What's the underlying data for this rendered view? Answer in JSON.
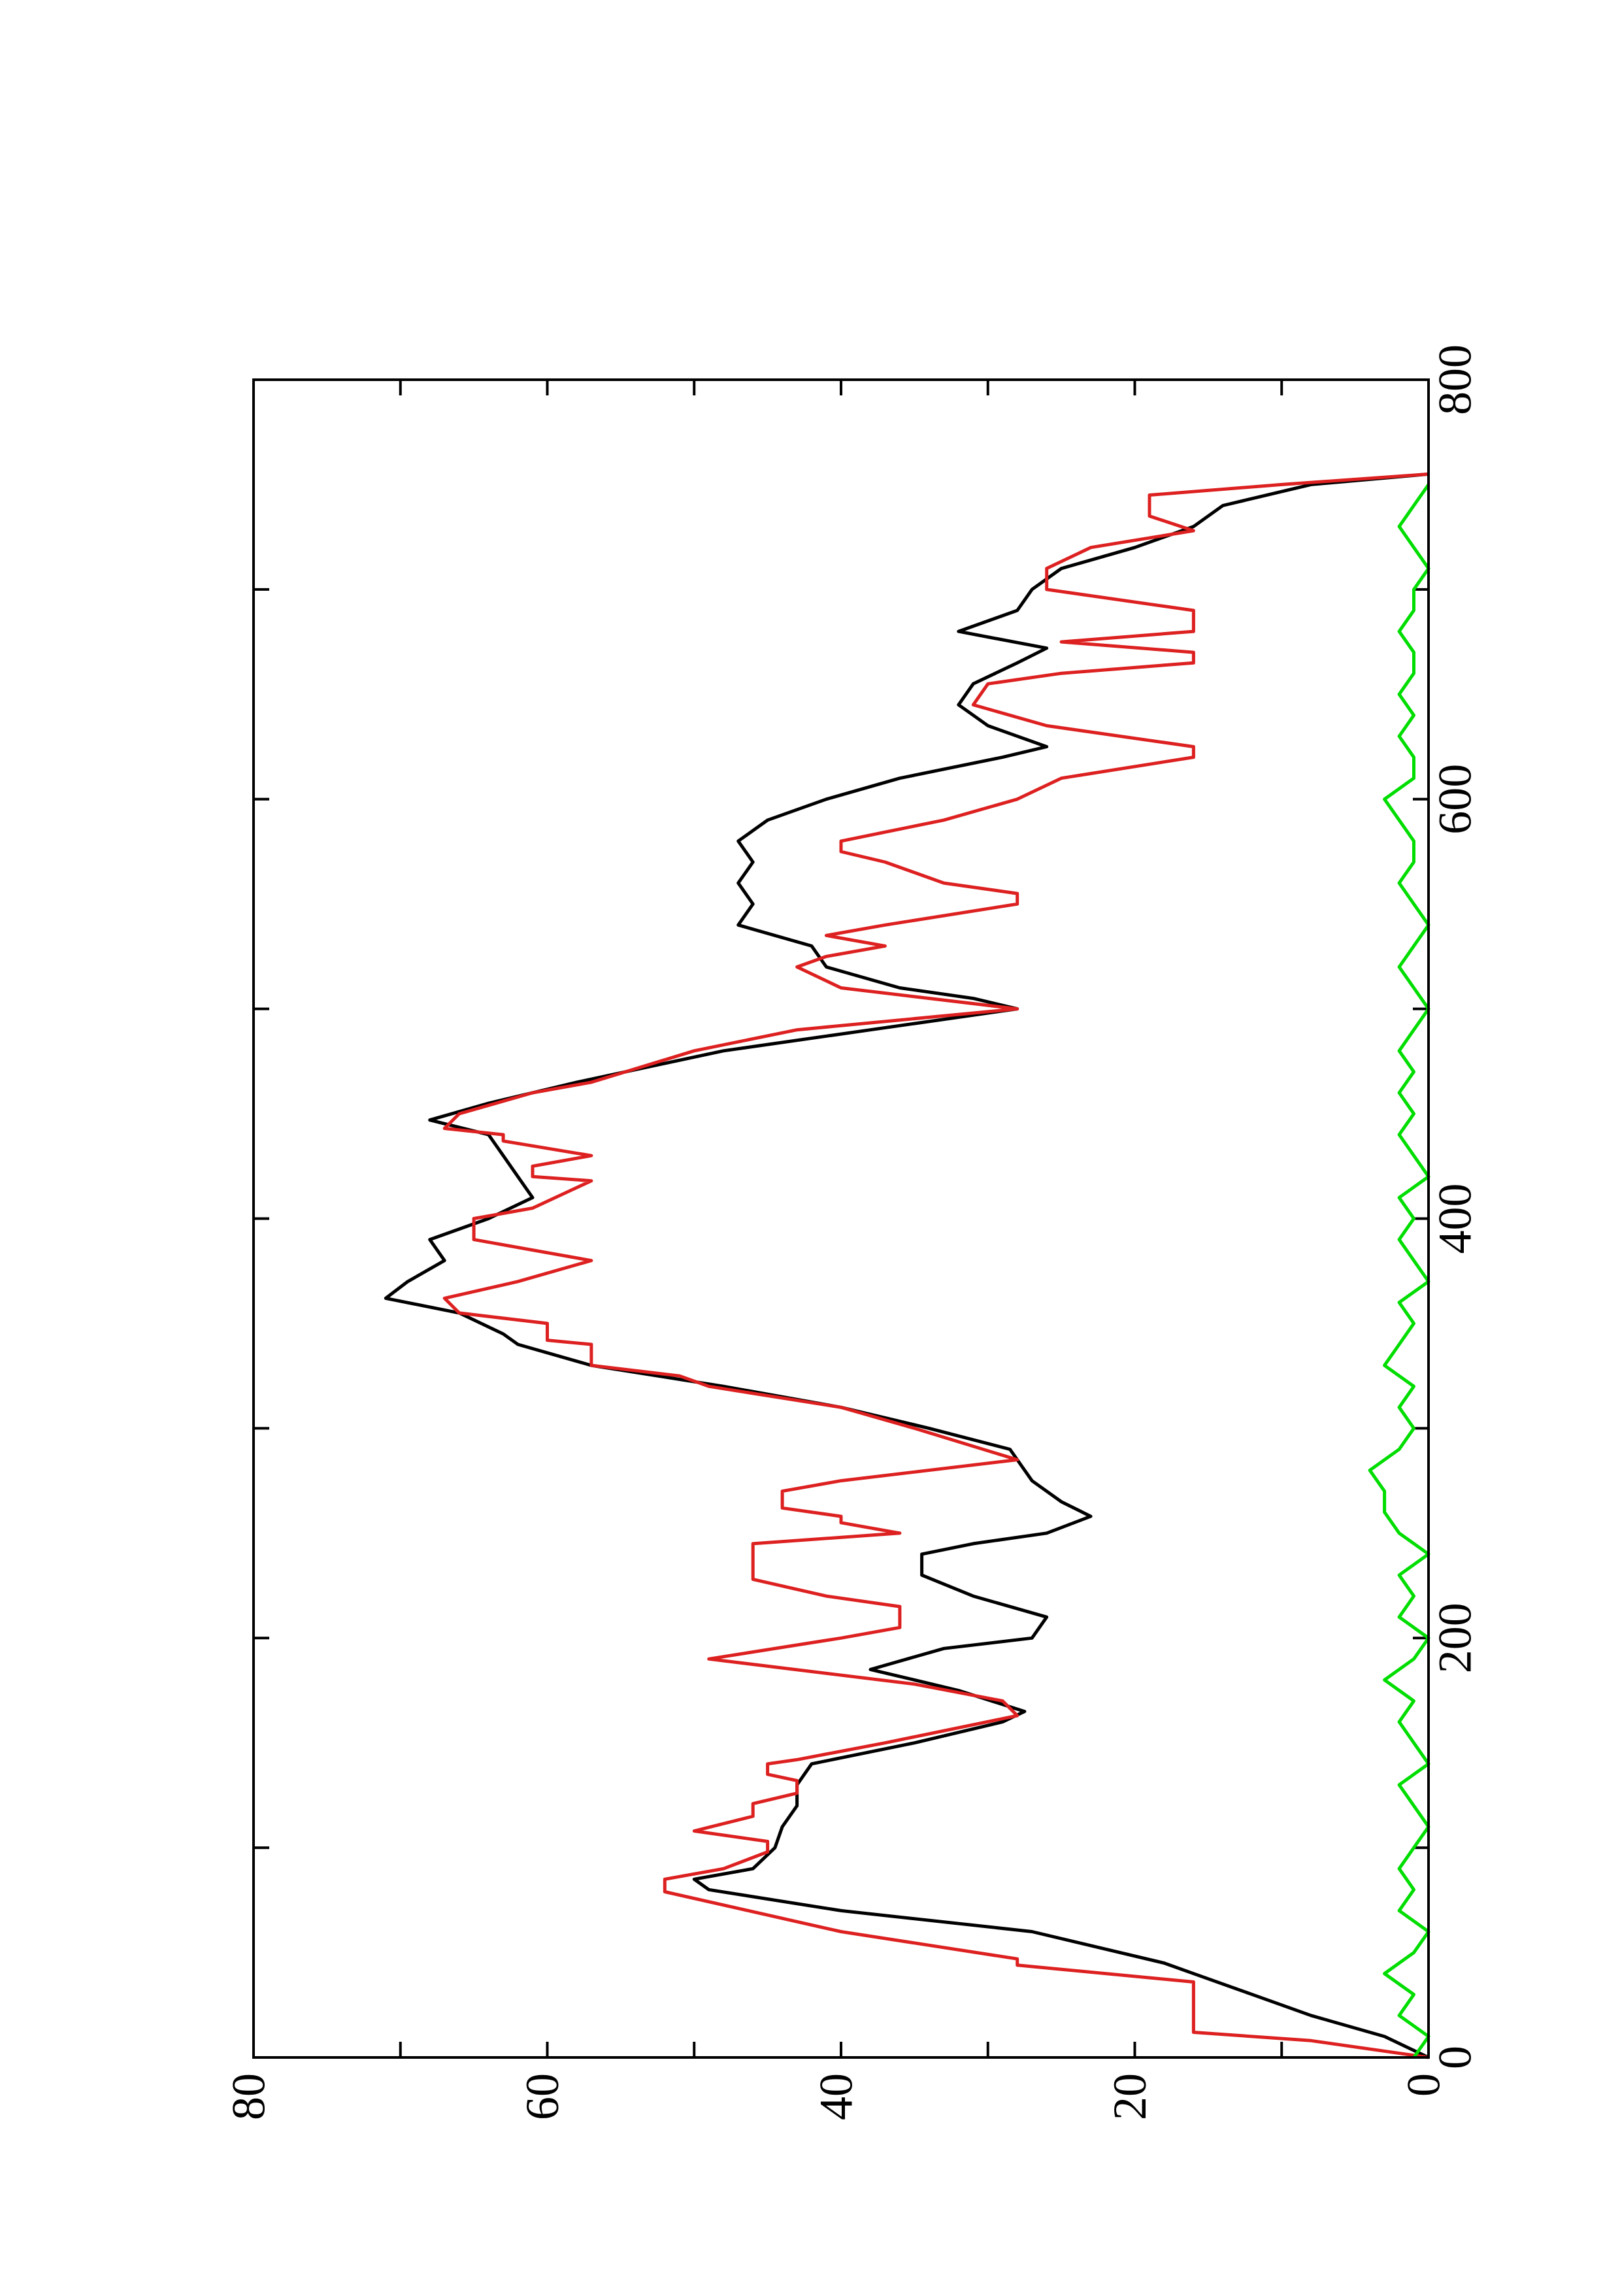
{
  "chart_data": {
    "type": "line",
    "xlim": [
      0,
      800
    ],
    "xticks": [
      0,
      200,
      400,
      600,
      800
    ],
    "xminor_ticks": [
      100,
      300,
      500,
      700
    ],
    "ylim": [
      0,
      80
    ],
    "yticks": [
      0,
      20,
      40,
      60,
      80
    ],
    "yminor_ticks": [
      10,
      30,
      50,
      70
    ],
    "rotated": true,
    "series": [
      {
        "color": "#000000",
        "x": [
          0,
          10,
          20,
          30,
          40,
          45,
          60,
          70,
          80,
          85,
          90,
          100,
          110,
          120,
          130,
          140,
          150,
          160,
          165,
          175,
          185,
          195,
          200,
          210,
          220,
          230,
          240,
          245,
          250,
          258,
          265,
          275,
          285,
          290,
          300,
          310,
          320,
          330,
          340,
          345,
          355,
          362,
          370,
          380,
          390,
          400,
          410,
          420,
          430,
          440,
          447,
          455,
          465,
          480,
          490,
          500,
          505,
          510,
          520,
          530,
          540,
          550,
          560,
          570,
          580,
          590,
          600,
          610,
          620,
          625,
          635,
          645,
          655,
          665,
          672,
          680,
          690,
          700,
          710,
          720,
          730,
          740,
          750,
          755
        ],
        "values": [
          0,
          3,
          8,
          12,
          16,
          18,
          27,
          40,
          49,
          50,
          46,
          44.5,
          44,
          43,
          43,
          42,
          35,
          29,
          27.5,
          32,
          38,
          33,
          27,
          26,
          31,
          34.5,
          34.5,
          31,
          26,
          23,
          25,
          27,
          28,
          28.5,
          34,
          40,
          48,
          57,
          62,
          63,
          66,
          71,
          69.5,
          67,
          68,
          64,
          61,
          62,
          63,
          64,
          68,
          64,
          58,
          48,
          38,
          28,
          31,
          36,
          41,
          42,
          47,
          46,
          47,
          46,
          47,
          45,
          41,
          36,
          29,
          26,
          30,
          32,
          31,
          28,
          26,
          32,
          28,
          27,
          25,
          20,
          16,
          14,
          8,
          0
        ]
      },
      {
        "color": "#dd2020",
        "x": [
          0,
          8,
          12,
          36,
          44,
          47,
          60,
          79,
          85,
          90,
          98,
          103,
          108,
          115,
          121,
          126,
          132,
          135,
          140,
          142,
          150,
          163,
          170,
          178,
          190,
          200,
          205,
          215,
          220,
          228,
          245,
          250,
          255,
          258,
          262,
          270,
          275,
          285,
          300,
          310,
          320,
          325,
          330,
          340,
          342,
          350,
          355,
          362,
          370,
          380,
          390,
          400,
          405,
          418,
          420,
          425,
          430,
          437,
          440,
          443,
          450,
          460,
          465,
          480,
          490,
          500,
          510,
          520,
          525,
          530,
          535,
          540,
          550,
          555,
          560,
          570,
          575,
          580,
          590,
          600,
          610,
          620,
          625,
          635,
          645,
          655,
          660,
          665,
          670,
          675,
          680,
          690,
          700,
          710,
          720,
          728,
          735,
          745,
          750,
          755
        ],
        "values": [
          0,
          8,
          16,
          16,
          28,
          28,
          40,
          52,
          52,
          48,
          45,
          45,
          50,
          46,
          46,
          43,
          43,
          45,
          45,
          43,
          37,
          28,
          29,
          35,
          49,
          40,
          36,
          36,
          41,
          46,
          46,
          36,
          40,
          40,
          44,
          44,
          40,
          28,
          35,
          40,
          49,
          51,
          57,
          57,
          60,
          60,
          66,
          67,
          62,
          57,
          65,
          65,
          61,
          57,
          61,
          61,
          57,
          63,
          63,
          67,
          66,
          61,
          57,
          50,
          43,
          28,
          40,
          43,
          41,
          37,
          41,
          37,
          28,
          28,
          33,
          37,
          40,
          40,
          33,
          28,
          25,
          16,
          16,
          26,
          31,
          30,
          25,
          16,
          16,
          25,
          16,
          16,
          26,
          26,
          23,
          16,
          19,
          19,
          10,
          0
        ]
      },
      {
        "color": "#00dd00",
        "x": [
          0,
          10,
          20,
          30,
          40,
          50,
          60,
          70,
          80,
          90,
          100,
          110,
          120,
          130,
          140,
          150,
          160,
          170,
          180,
          190,
          200,
          210,
          220,
          230,
          240,
          250,
          260,
          270,
          280,
          290,
          300,
          310,
          320,
          330,
          340,
          350,
          360,
          370,
          380,
          390,
          400,
          410,
          420,
          430,
          440,
          450,
          460,
          470,
          480,
          490,
          500,
          510,
          520,
          530,
          540,
          550,
          560,
          570,
          580,
          590,
          600,
          610,
          620,
          630,
          640,
          650,
          660,
          670,
          680,
          690,
          700,
          710,
          720,
          730,
          740,
          750
        ],
        "values": [
          1,
          0,
          2,
          1,
          3,
          1,
          0,
          2,
          1,
          2,
          1,
          0,
          1,
          2,
          0,
          1,
          2,
          1,
          3,
          1,
          0,
          2,
          1,
          2,
          0,
          2,
          3,
          3,
          4,
          2,
          1,
          2,
          1,
          3,
          2,
          1,
          2,
          0,
          1,
          2,
          1,
          2,
          0,
          1,
          2,
          1,
          2,
          1,
          2,
          1,
          0,
          1,
          2,
          1,
          0,
          1,
          2,
          1,
          1,
          2,
          3,
          1,
          1,
          2,
          1,
          2,
          1,
          1,
          2,
          1,
          1,
          0,
          1,
          2,
          1,
          0
        ]
      }
    ]
  }
}
